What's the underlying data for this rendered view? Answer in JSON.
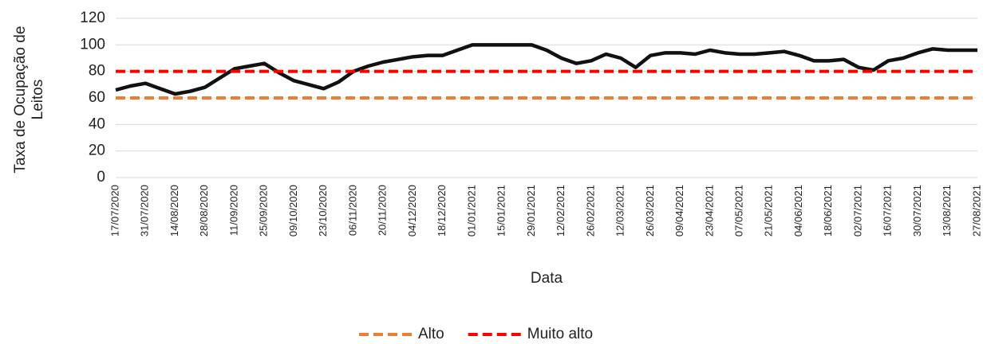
{
  "chart_data": {
    "type": "line",
    "y_label": "Taxa de Ocupação de Leitos",
    "x_label": "Data",
    "categories": [
      "17/07/2020",
      null,
      "31/07/2020",
      null,
      "14/08/2020",
      null,
      "28/08/2020",
      null,
      "11/09/2020",
      null,
      "25/09/2020",
      null,
      "09/10/2020",
      null,
      "23/10/2020",
      null,
      "06/11/2020",
      null,
      "20/11/2020",
      null,
      "04/12/2020",
      null,
      "18/12/2020",
      null,
      "01/01/2021",
      null,
      "15/01/2021",
      null,
      "29/01/2021",
      null,
      "12/02/2021",
      null,
      "26/02/2021",
      null,
      "12/03/2021",
      null,
      "26/03/2021",
      null,
      "09/04/2021",
      null,
      "23/04/2021",
      null,
      "07/05/2021",
      null,
      "21/05/2021",
      null,
      "04/06/2021",
      null,
      "18/06/2021",
      null,
      "02/07/2021",
      null,
      "16/07/2021",
      null,
      "30/07/2021",
      null,
      "13/08/2021",
      null,
      "27/08/2021"
    ],
    "series": [
      {
        "color": "#111111",
        "values": [
          66,
          69,
          71,
          67,
          63,
          65,
          68,
          75,
          82,
          84,
          86,
          79,
          73,
          70,
          67,
          72,
          80,
          84,
          87,
          89,
          91,
          92,
          92,
          96,
          100,
          100,
          100,
          100,
          100,
          96,
          90,
          86,
          88,
          93,
          90,
          83,
          92,
          94,
          94,
          93,
          96,
          94,
          93,
          93,
          94,
          95,
          92,
          88,
          88,
          89,
          83,
          81,
          88,
          90,
          94,
          97,
          96,
          96,
          96
        ]
      },
      {
        "name": "Alto",
        "color": "#ed7d31",
        "dashed": true,
        "values": [
          60,
          60,
          60,
          60,
          60,
          60,
          60,
          60,
          60,
          60,
          60,
          60,
          60,
          60,
          60,
          60,
          60,
          60,
          60,
          60,
          60,
          60,
          60,
          60,
          60,
          60,
          60,
          60,
          60,
          60,
          60,
          60,
          60,
          60,
          60,
          60,
          60,
          60,
          60,
          60,
          60,
          60,
          60,
          60,
          60,
          60,
          60,
          60,
          60,
          60,
          60,
          60,
          60,
          60,
          60,
          60,
          60,
          60,
          60
        ]
      },
      {
        "name": "Muito alto",
        "color": "#ff0000",
        "dashed": true,
        "values": [
          80,
          80,
          80,
          80,
          80,
          80,
          80,
          80,
          80,
          80,
          80,
          80,
          80,
          80,
          80,
          80,
          80,
          80,
          80,
          80,
          80,
          80,
          80,
          80,
          80,
          80,
          80,
          80,
          80,
          80,
          80,
          80,
          80,
          80,
          80,
          80,
          80,
          80,
          80,
          80,
          80,
          80,
          80,
          80,
          80,
          80,
          80,
          80,
          80,
          80,
          80,
          80,
          80,
          80,
          80,
          80,
          80,
          80,
          80
        ]
      }
    ],
    "ylim": [
      0,
      120
    ],
    "yticks": [
      0,
      20,
      40,
      60,
      80,
      100,
      120
    ],
    "grid": true,
    "legend": "bottom"
  }
}
